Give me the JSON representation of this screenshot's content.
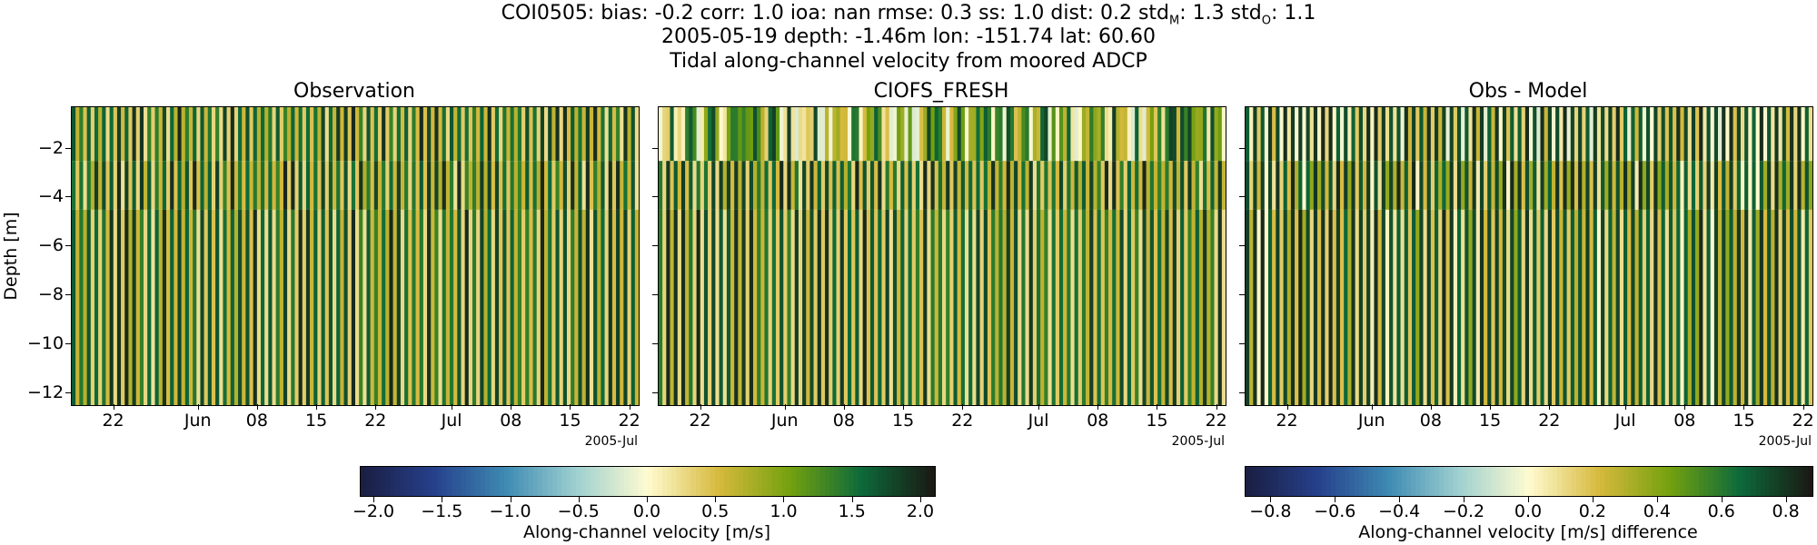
{
  "header": {
    "stats_line": "COI0505: bias: -0.2  corr: 1.0  ioa: nan  rmse: 0.3  ss: 1.0  dist: 0.2  std",
    "std_m_sub": "M",
    "std_m_val": ": 1.3  std",
    "std_o_sub": "O",
    "std_o_val": ": 1.1",
    "meta_line": "2005-05-19 depth: -1.46m lon: -151.74 lat: 60.60",
    "desc_line": "Tidal along-channel velocity from moored ADCP"
  },
  "colors": {
    "cmap_velocity": [
      "#1b1f44",
      "#26408c",
      "#3e8ab2",
      "#9fd0d0",
      "#fffbd0",
      "#d6b93d",
      "#74a10f",
      "#0d6a3a",
      "#1a1a14"
    ]
  },
  "chart_data": [
    {
      "type": "heatmap",
      "title": "Observation",
      "ylabel": "Depth [m]",
      "ylim": [
        -12.5,
        -0.3
      ],
      "yticks": [
        -2,
        -4,
        -6,
        -8,
        -10,
        -12
      ],
      "xlim": [
        "2005-05-17",
        "2005-07-23"
      ],
      "xticks": [
        "22",
        "Jun",
        "08",
        "15",
        "22",
        "Jul",
        "08",
        "15",
        "22"
      ],
      "x_offset_label": "2005-Jul",
      "depth_levels": [
        -2,
        -4,
        -6,
        -8,
        -10,
        -12
      ],
      "value_range": [
        -2.0,
        2.0
      ],
      "pattern": "tidal alternating stripes"
    },
    {
      "type": "heatmap",
      "title": "CIOFS_FRESH",
      "ylim": [
        -12.5,
        -0.3
      ],
      "xlim": [
        "2005-05-17",
        "2005-07-23"
      ],
      "xticks": [
        "22",
        "Jun",
        "08",
        "15",
        "22",
        "Jul",
        "08",
        "15",
        "22"
      ],
      "x_offset_label": "2005-Jul",
      "value_range": [
        -2.0,
        2.0
      ],
      "pattern": "tidal alternating stripes"
    },
    {
      "type": "heatmap",
      "title": "Obs - Model",
      "ylim": [
        -12.5,
        -0.3
      ],
      "xlim": [
        "2005-05-17",
        "2005-07-23"
      ],
      "xticks": [
        "22",
        "Jun",
        "08",
        "15",
        "22",
        "Jul",
        "08",
        "15",
        "22"
      ],
      "x_offset_label": "2005-Jul",
      "value_range": [
        -0.9,
        0.9
      ],
      "pattern": "tidal alternating stripes"
    }
  ],
  "colorbars": [
    {
      "label": "Along-channel velocity [m/s]",
      "min": -2.1,
      "max": 2.1,
      "ticks": [
        "−2.0",
        "−1.5",
        "−1.0",
        "−0.5",
        "0.0",
        "0.5",
        "1.0",
        "1.5",
        "2.0"
      ],
      "tick_values": [
        -2.0,
        -1.5,
        -1.0,
        -0.5,
        0.0,
        0.5,
        1.0,
        1.5,
        2.0
      ]
    },
    {
      "label": "Along-channel velocity [m/s] difference",
      "min": -0.88,
      "max": 0.88,
      "ticks": [
        "−0.8",
        "−0.6",
        "−0.4",
        "−0.2",
        "0.0",
        "0.2",
        "0.4",
        "0.6",
        "0.8"
      ],
      "tick_values": [
        -0.8,
        -0.6,
        -0.4,
        -0.2,
        0.0,
        0.2,
        0.4,
        0.6,
        0.8
      ]
    }
  ]
}
